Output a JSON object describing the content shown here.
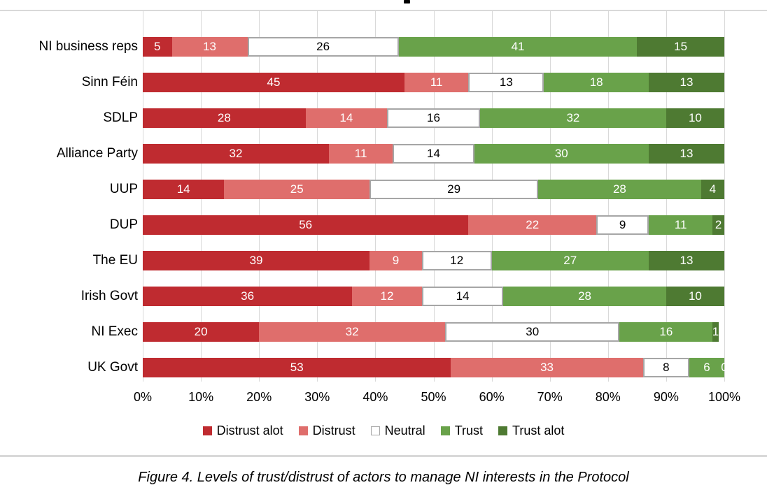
{
  "caption": "Figure 4. Levels of trust/distrust of actors to manage NI interests in the Protocol",
  "colors": {
    "gridline": "#d9d9d9",
    "neutral_border": "#a6a6a6"
  },
  "chart_data": {
    "type": "bar",
    "orientation": "horizontal",
    "stacked": true,
    "grid": true,
    "legend_position": "bottom",
    "xlim": [
      0,
      100
    ],
    "x_ticks": [
      "0%",
      "10%",
      "20%",
      "30%",
      "40%",
      "50%",
      "60%",
      "70%",
      "80%",
      "90%",
      "100%"
    ],
    "categories": [
      "NI business reps",
      "Sinn Féin",
      "SDLP",
      "Alliance Party",
      "UUP",
      "DUP",
      "The EU",
      "Irish Govt",
      "NI Exec",
      "UK Govt"
    ],
    "series": [
      {
        "name": "Distrust alot",
        "color": "#bf2b30",
        "label_color": "#ffffff",
        "values": [
          5,
          45,
          28,
          32,
          14,
          56,
          39,
          36,
          20,
          53
        ]
      },
      {
        "name": "Distrust",
        "color": "#df6e6c",
        "label_color": "#ffffff",
        "values": [
          13,
          11,
          14,
          11,
          25,
          22,
          9,
          12,
          32,
          33
        ]
      },
      {
        "name": "Neutral",
        "color": "#ffffff",
        "border": "#a6a6a6",
        "label_color": "#000000",
        "values": [
          26,
          13,
          16,
          14,
          29,
          9,
          12,
          14,
          30,
          8
        ]
      },
      {
        "name": "Trust",
        "color": "#69a24a",
        "label_color": "#ffffff",
        "values": [
          41,
          18,
          32,
          30,
          28,
          11,
          27,
          28,
          16,
          6
        ]
      },
      {
        "name": "Trust alot",
        "color": "#4e7a32",
        "label_color": "#ffffff",
        "values": [
          15,
          13,
          10,
          13,
          4,
          2,
          13,
          10,
          1,
          0
        ]
      }
    ]
  }
}
